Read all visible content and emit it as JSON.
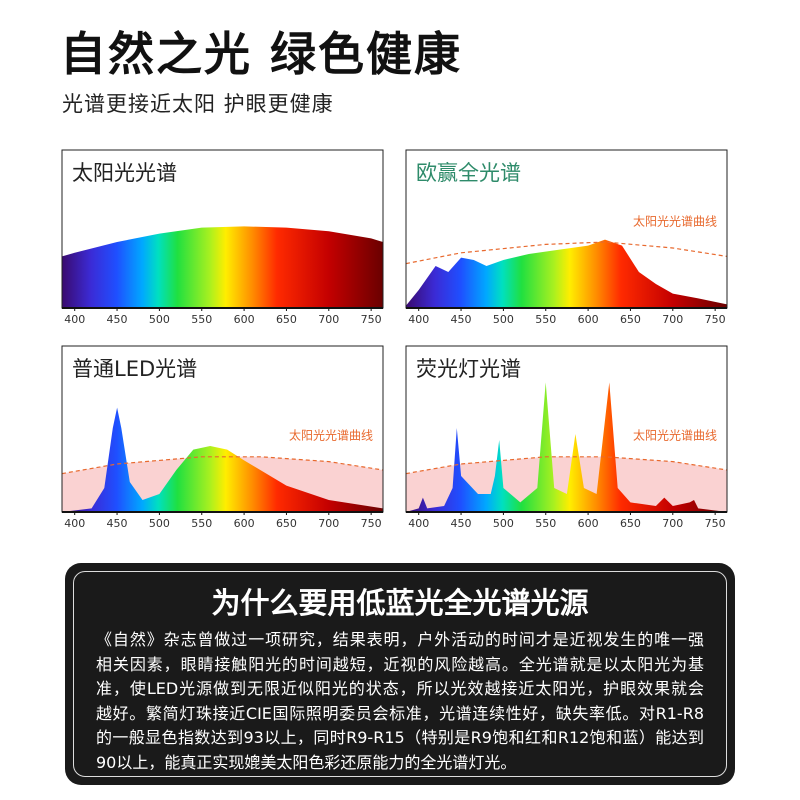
{
  "header": {
    "title": "自然之光 绿色健康",
    "subtitle": "光谱更接近太阳 护眼更健康"
  },
  "chart_data": [
    {
      "type": "area",
      "title": "太阳光光谱",
      "title_color": "#222",
      "xlim": [
        385,
        764
      ],
      "xticks": [
        400,
        450,
        500,
        550,
        600,
        650,
        700,
        750
      ],
      "ylim": [
        0,
        110
      ],
      "series": [
        {
          "x": [
            385,
            400,
            450,
            500,
            550,
            600,
            650,
            700,
            750,
            764
          ],
          "values": [
            43,
            46,
            55,
            62,
            67,
            68,
            67,
            64,
            58,
            55
          ]
        }
      ]
    },
    {
      "type": "area",
      "title": "欧赢全光谱",
      "title_color": "#2e8b6a",
      "xlim": [
        385,
        764
      ],
      "xticks": [
        400,
        450,
        500,
        550,
        600,
        650,
        700,
        750
      ],
      "ylim": [
        0,
        110
      ],
      "series": [
        {
          "x": [
            385,
            400,
            420,
            435,
            450,
            465,
            480,
            500,
            530,
            560,
            600,
            620,
            640,
            660,
            680,
            700,
            730,
            764
          ],
          "values": [
            2,
            15,
            35,
            30,
            42,
            40,
            35,
            40,
            45,
            48,
            52,
            57,
            52,
            30,
            20,
            12,
            8,
            3
          ]
        },
        {
          "name": "太阳光光谱曲线",
          "color": "#e8692e",
          "x": [
            385,
            450,
            550,
            620,
            700,
            764
          ],
          "values": [
            37,
            46,
            53,
            55,
            50,
            43
          ]
        }
      ]
    },
    {
      "type": "area",
      "title": "普通LED光谱",
      "title_color": "#222",
      "xlim": [
        385,
        764
      ],
      "xticks": [
        400,
        450,
        500,
        550,
        600,
        650,
        700,
        750
      ],
      "ylim": [
        0,
        110
      ],
      "series": [
        {
          "x": [
            385,
            420,
            435,
            445,
            450,
            455,
            465,
            480,
            500,
            520,
            540,
            560,
            580,
            600,
            650,
            700,
            764
          ],
          "values": [
            0,
            3,
            20,
            70,
            87,
            70,
            25,
            10,
            15,
            35,
            52,
            55,
            52,
            43,
            22,
            10,
            3
          ]
        },
        {
          "name": "太阳光光谱曲线",
          "color": "#e8692e",
          "fill": "#f9caca",
          "x": [
            385,
            450,
            550,
            620,
            700,
            764
          ],
          "values": [
            32,
            40,
            46,
            46,
            42,
            35
          ]
        }
      ]
    },
    {
      "type": "area",
      "title": "荧光灯光谱",
      "title_color": "#222",
      "xlim": [
        385,
        764
      ],
      "xticks": [
        400,
        450,
        500,
        550,
        600,
        650,
        700,
        750
      ],
      "ylim": [
        0,
        110
      ],
      "series": [
        {
          "x": [
            385,
            400,
            405,
            410,
            430,
            440,
            445,
            450,
            470,
            485,
            490,
            495,
            500,
            520,
            540,
            550,
            560,
            575,
            585,
            595,
            610,
            625,
            635,
            650,
            680,
            690,
            700,
            720,
            725,
            730,
            764
          ],
          "values": [
            0,
            3,
            12,
            3,
            5,
            20,
            70,
            30,
            15,
            15,
            30,
            60,
            20,
            8,
            20,
            108,
            20,
            15,
            65,
            20,
            15,
            108,
            20,
            8,
            5,
            12,
            5,
            8,
            10,
            3,
            0
          ]
        },
        {
          "name": "太阳光光谱曲线",
          "color": "#e8692e",
          "fill": "#f9caca",
          "x": [
            385,
            450,
            550,
            620,
            700,
            764
          ],
          "values": [
            32,
            40,
            46,
            46,
            42,
            35
          ]
        }
      ]
    }
  ],
  "info": {
    "title": "为什么要用低蓝光全光谱光源",
    "lines": [
      "《自然》杂志曾做过一项研究，结果表明，户外活动的时间才是近视发生的唯一强",
      "相关因素，眼睛接触阳光的时间越短，近视的风险越高。全光谱就是以太阳光为基",
      "准，使LED光源做到无限近似阳光的状态，所以光效越接近太阳光，护眼效果就会",
      "越好。繁简灯珠接近CIE国际照明委员会标准，光谱连续性好，缺失率低。对R1-R8",
      "的一般显色指数达到93以上，同时R9-R15（特别是R9饱和红和R12饱和蓝）能达到",
      "90以上，能真正实现媲美太阳色彩还原能力的全光谱灯光。"
    ]
  }
}
